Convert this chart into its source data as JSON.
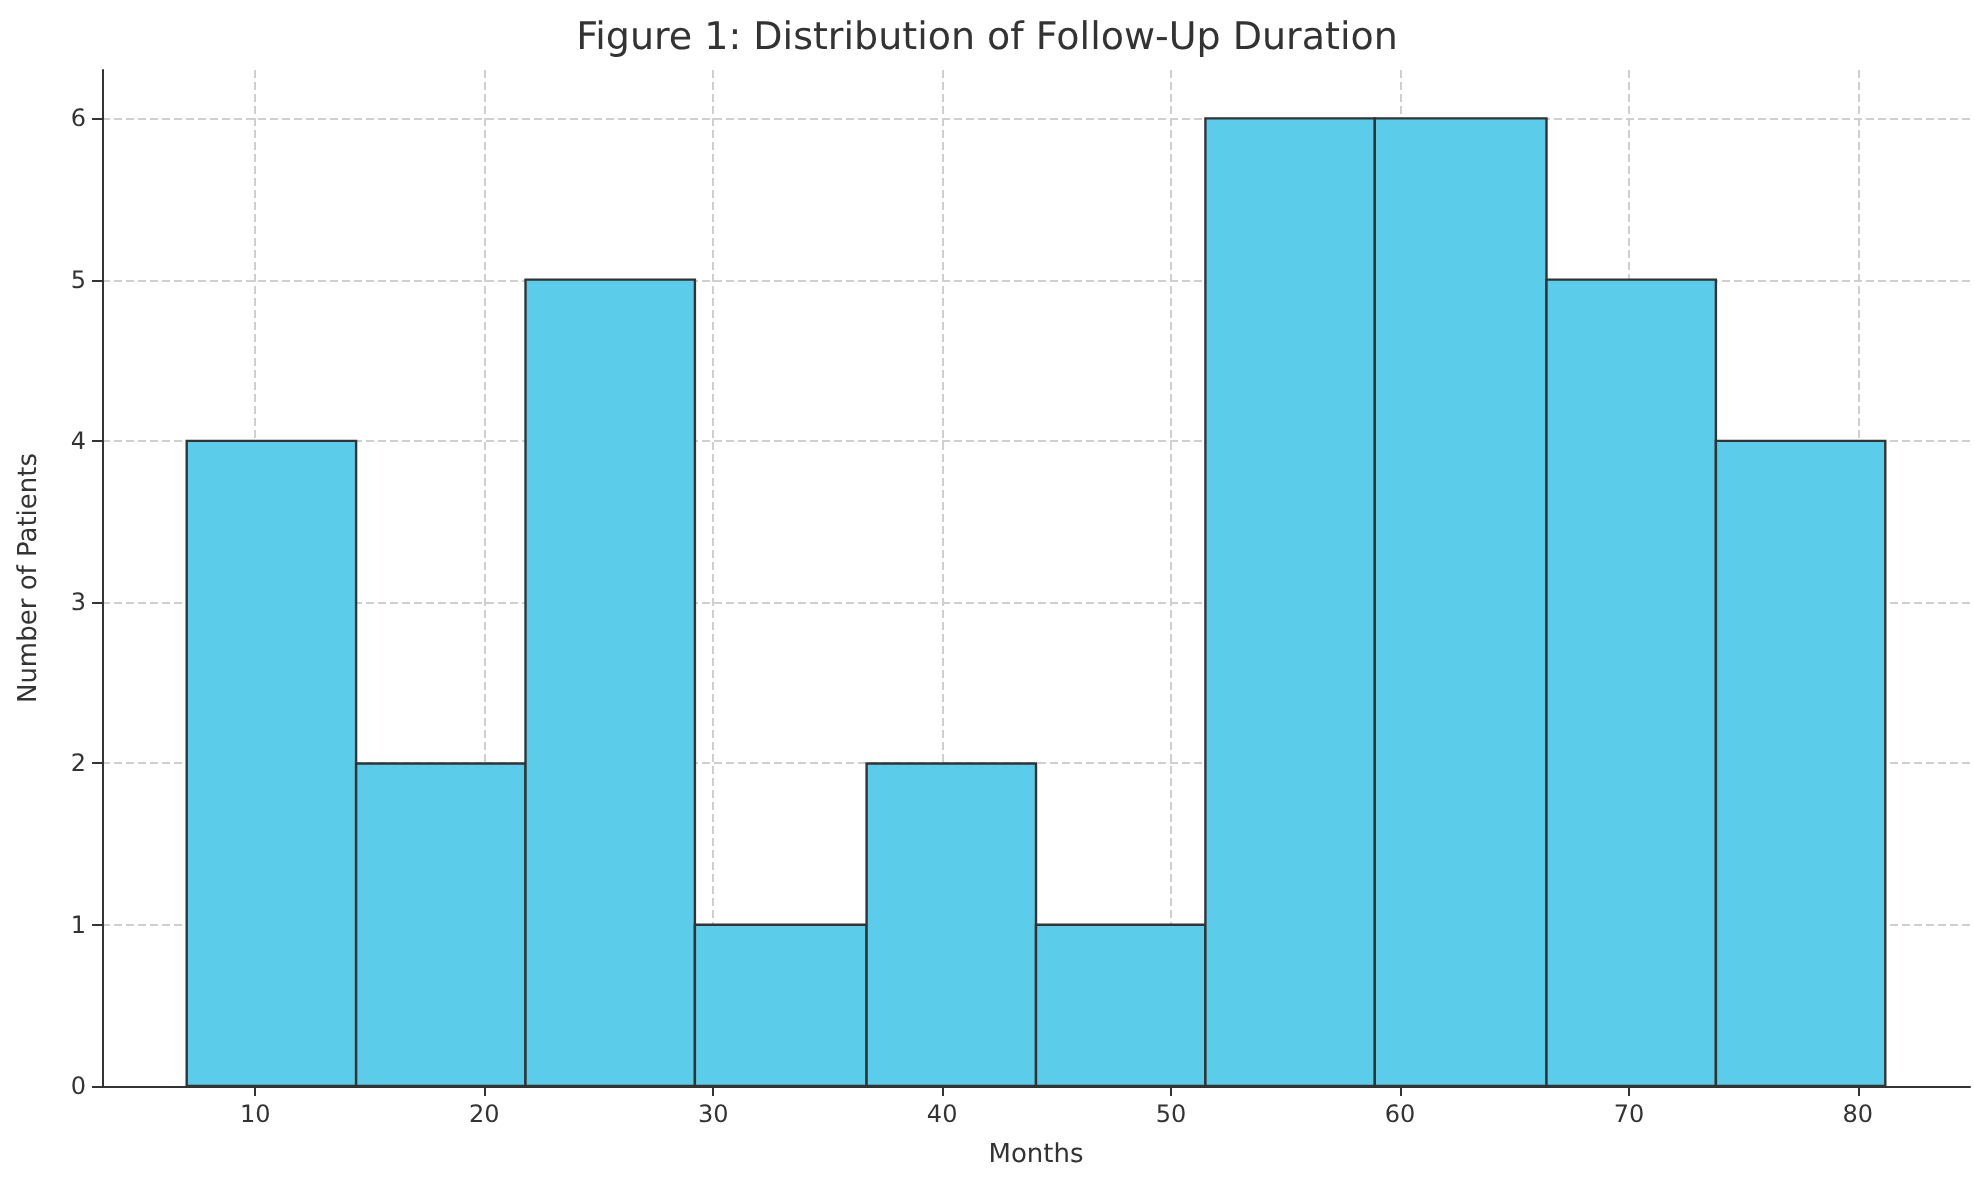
{
  "chart_data": {
    "type": "histogram",
    "title": "Figure 1: Distribution of Follow-Up Duration",
    "xlabel": "Months",
    "ylabel": "Number of Patients",
    "bins": [
      7,
      14.4,
      21.8,
      29.2,
      36.7,
      44.1,
      51.5,
      58.9,
      66.4,
      73.8,
      81.2
    ],
    "values": [
      4,
      2,
      5,
      1,
      2,
      1,
      6,
      6,
      5,
      4
    ],
    "color": "#5bcdeb",
    "xlim": [
      3.3,
      84.9
    ],
    "xticks": [
      10,
      20,
      30,
      40,
      50,
      60,
      70,
      80
    ],
    "ylim": [
      0,
      6.3
    ],
    "yticks": [
      0,
      1,
      2,
      3,
      4,
      5,
      6
    ],
    "grid": true
  }
}
